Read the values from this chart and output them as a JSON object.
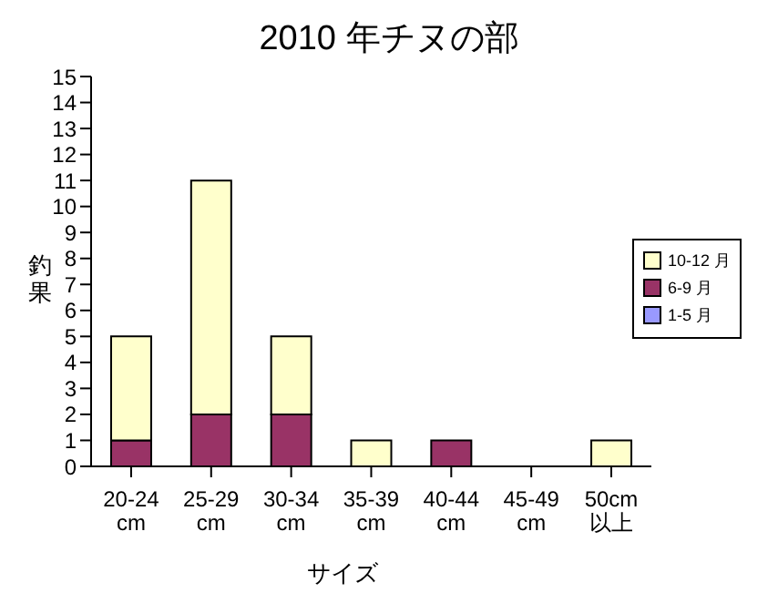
{
  "chart_data": {
    "type": "bar",
    "title": "2010 年チヌの部",
    "xlabel": "サイズ",
    "ylabel": "釣果",
    "categories": [
      "20-24cm",
      "25-29cm",
      "30-34cm",
      "35-39cm",
      "40-44cm",
      "45-49cm",
      "50cm以上"
    ],
    "series": [
      {
        "name": "1-5 月",
        "color": "#9999ff",
        "values": [
          0,
          0,
          0,
          0,
          0,
          0,
          0
        ]
      },
      {
        "name": "6-9 月",
        "color": "#993366",
        "values": [
          1,
          2,
          2,
          0,
          1,
          0,
          0
        ]
      },
      {
        "name": "10-12 月",
        "color": "#ffffcc",
        "values": [
          4,
          9,
          3,
          1,
          0,
          0,
          1
        ]
      }
    ],
    "stacked": true,
    "ylim": [
      0,
      15
    ],
    "yticks": [
      0,
      1,
      2,
      3,
      4,
      5,
      6,
      7,
      8,
      9,
      10,
      11,
      12,
      13,
      14,
      15
    ],
    "grid": false,
    "legend": "right"
  }
}
